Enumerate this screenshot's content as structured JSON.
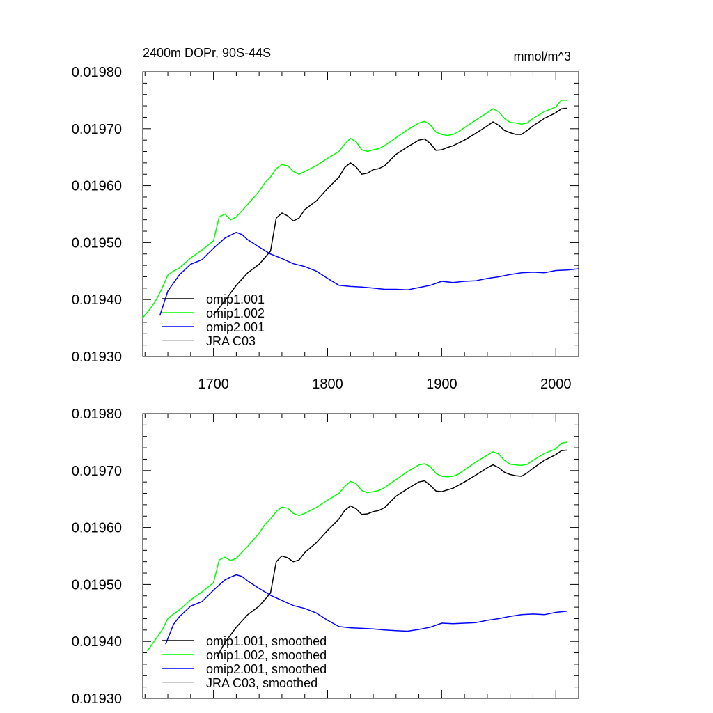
{
  "chart_data": [
    {
      "type": "line",
      "title": "2400m DOPr, 90S-44S",
      "units_label": "mmol/m^3",
      "xlim": [
        1638,
        2020
      ],
      "ylim": [
        0.0193,
        0.0198
      ],
      "xticks": [
        1700,
        1800,
        1900,
        2000
      ],
      "xtick_labels": [
        "1700",
        "1800",
        "1900",
        "2000"
      ],
      "yticks": [
        0.0193,
        0.0194,
        0.0195,
        0.0196,
        0.0197,
        0.0198
      ],
      "ytick_labels": [
        "0.01930",
        "0.01940",
        "0.01950",
        "0.01960",
        "0.01970",
        "0.01980"
      ],
      "legend_position": "bottom-left",
      "grid": false,
      "series": [
        {
          "name": "omip1.001",
          "color": "#000000",
          "x": [
            1700,
            1710,
            1720,
            1730,
            1740,
            1750,
            1755,
            1760,
            1765,
            1770,
            1775,
            1780,
            1790,
            1800,
            1810,
            1815,
            1820,
            1825,
            1830,
            1835,
            1840,
            1845,
            1850,
            1860,
            1870,
            1880,
            1885,
            1890,
            1895,
            1900,
            1905,
            1910,
            1920,
            1930,
            1940,
            1945,
            1950,
            1955,
            1960,
            1965,
            1970,
            1975,
            1980,
            1990,
            2000,
            2005,
            2010
          ],
          "y": [
            0.019373,
            0.019398,
            0.019425,
            0.019447,
            0.019462,
            0.019485,
            0.019543,
            0.019552,
            0.019547,
            0.019538,
            0.019543,
            0.019558,
            0.019573,
            0.019595,
            0.019615,
            0.019632,
            0.01964,
            0.019633,
            0.01962,
            0.019622,
            0.019628,
            0.01963,
            0.019635,
            0.019655,
            0.019668,
            0.01968,
            0.019682,
            0.019674,
            0.019662,
            0.019663,
            0.019667,
            0.01967,
            0.01968,
            0.019692,
            0.019705,
            0.019712,
            0.019706,
            0.019697,
            0.019693,
            0.01969,
            0.01969,
            0.019697,
            0.019705,
            0.019718,
            0.019728,
            0.019735,
            0.019736
          ]
        },
        {
          "name": "omip1.002",
          "color": "#00ff00",
          "x": [
            1638,
            1645,
            1650,
            1655,
            1660,
            1665,
            1670,
            1680,
            1690,
            1700,
            1705,
            1710,
            1715,
            1720,
            1730,
            1740,
            1745,
            1750,
            1755,
            1760,
            1765,
            1770,
            1775,
            1780,
            1790,
            1800,
            1810,
            1815,
            1820,
            1825,
            1830,
            1835,
            1840,
            1845,
            1850,
            1860,
            1870,
            1880,
            1885,
            1890,
            1895,
            1900,
            1905,
            1910,
            1915,
            1920,
            1930,
            1940,
            1945,
            1950,
            1955,
            1960,
            1965,
            1970,
            1975,
            1980,
            1990,
            2000,
            2005,
            2010
          ],
          "y": [
            0.019368,
            0.019385,
            0.0194,
            0.01942,
            0.019443,
            0.01945,
            0.019455,
            0.019473,
            0.019487,
            0.019503,
            0.019545,
            0.01955,
            0.01954,
            0.019545,
            0.019567,
            0.01959,
            0.019605,
            0.019615,
            0.01963,
            0.019637,
            0.019635,
            0.019625,
            0.01962,
            0.019625,
            0.019635,
            0.019648,
            0.01966,
            0.019673,
            0.019683,
            0.019677,
            0.019663,
            0.01966,
            0.019663,
            0.019665,
            0.01967,
            0.019684,
            0.019698,
            0.01971,
            0.019713,
            0.019707,
            0.019694,
            0.01969,
            0.019688,
            0.01969,
            0.019695,
            0.019702,
            0.019715,
            0.019728,
            0.019735,
            0.01973,
            0.019718,
            0.019711,
            0.01971,
            0.019708,
            0.01971,
            0.019718,
            0.01973,
            0.019738,
            0.01975,
            0.01975
          ]
        },
        {
          "name": "omip2.001",
          "color": "#0000ff",
          "x": [
            1653,
            1660,
            1670,
            1680,
            1690,
            1700,
            1710,
            1715,
            1720,
            1725,
            1730,
            1740,
            1750,
            1760,
            1770,
            1780,
            1790,
            1800,
            1810,
            1820,
            1830,
            1840,
            1850,
            1860,
            1870,
            1880,
            1890,
            1900,
            1910,
            1920,
            1930,
            1940,
            1950,
            1960,
            1970,
            1980,
            1990,
            2000,
            2010,
            2020
          ],
          "y": [
            0.019372,
            0.019415,
            0.019443,
            0.019462,
            0.01947,
            0.01949,
            0.019508,
            0.019513,
            0.019518,
            0.019514,
            0.019505,
            0.019492,
            0.01948,
            0.019472,
            0.019463,
            0.019458,
            0.01945,
            0.019437,
            0.019425,
            0.019423,
            0.019422,
            0.01942,
            0.019418,
            0.019418,
            0.019417,
            0.019421,
            0.019425,
            0.019432,
            0.01943,
            0.019432,
            0.019433,
            0.019437,
            0.01944,
            0.019444,
            0.019447,
            0.019448,
            0.019447,
            0.019451,
            0.019452,
            0.019454
          ]
        },
        {
          "name": "JRA C03",
          "color": "#bbbbbb",
          "x": [],
          "y": []
        }
      ]
    },
    {
      "type": "line",
      "xlim": [
        1638,
        2020
      ],
      "ylim": [
        0.0193,
        0.0198
      ],
      "xticks": [
        1700,
        1800,
        1900,
        2000
      ],
      "yticks": [
        0.0193,
        0.0194,
        0.0195,
        0.0196,
        0.0197,
        0.0198
      ],
      "ytick_labels": [
        "0.01930",
        "0.01940",
        "0.01950",
        "0.01960",
        "0.01970",
        "0.01980"
      ],
      "legend_position": "bottom-left",
      "grid": false,
      "series": [
        {
          "name": "omip1.001, smoothed",
          "color": "#000000",
          "x": [
            1703,
            1710,
            1720,
            1730,
            1740,
            1750,
            1755,
            1760,
            1765,
            1770,
            1775,
            1780,
            1790,
            1800,
            1810,
            1815,
            1820,
            1825,
            1830,
            1835,
            1840,
            1845,
            1850,
            1860,
            1870,
            1880,
            1885,
            1890,
            1895,
            1900,
            1905,
            1910,
            1920,
            1930,
            1940,
            1945,
            1950,
            1955,
            1960,
            1965,
            1970,
            1975,
            1980,
            1990,
            2000,
            2005,
            2010
          ],
          "y": [
            0.019373,
            0.019398,
            0.019425,
            0.019447,
            0.019462,
            0.019485,
            0.01954,
            0.01955,
            0.019547,
            0.01954,
            0.019543,
            0.019556,
            0.019573,
            0.019595,
            0.019615,
            0.01963,
            0.019638,
            0.019633,
            0.019623,
            0.019624,
            0.019628,
            0.01963,
            0.019635,
            0.019655,
            0.019668,
            0.01968,
            0.019682,
            0.019674,
            0.019664,
            0.019663,
            0.019666,
            0.019669,
            0.01968,
            0.019692,
            0.019705,
            0.01971,
            0.019705,
            0.019697,
            0.019693,
            0.019691,
            0.01969,
            0.019696,
            0.019704,
            0.019718,
            0.019728,
            0.019735,
            0.019736
          ]
        },
        {
          "name": "omip1.002, smoothed",
          "color": "#00ff00",
          "x": [
            1642,
            1648,
            1655,
            1660,
            1665,
            1670,
            1680,
            1690,
            1700,
            1705,
            1710,
            1715,
            1720,
            1730,
            1740,
            1745,
            1750,
            1755,
            1760,
            1765,
            1770,
            1775,
            1780,
            1790,
            1800,
            1810,
            1815,
            1820,
            1825,
            1830,
            1835,
            1840,
            1845,
            1850,
            1860,
            1870,
            1880,
            1885,
            1890,
            1895,
            1900,
            1905,
            1910,
            1915,
            1920,
            1930,
            1940,
            1945,
            1950,
            1955,
            1960,
            1965,
            1970,
            1975,
            1980,
            1990,
            2000,
            2005,
            2010
          ],
          "y": [
            0.019383,
            0.0194,
            0.01942,
            0.01944,
            0.019448,
            0.019455,
            0.019473,
            0.019487,
            0.019503,
            0.019543,
            0.019548,
            0.019542,
            0.019546,
            0.019567,
            0.01959,
            0.019605,
            0.019615,
            0.019628,
            0.019636,
            0.019634,
            0.019625,
            0.019621,
            0.019625,
            0.019635,
            0.019648,
            0.01966,
            0.019672,
            0.019681,
            0.019677,
            0.019665,
            0.019661,
            0.019663,
            0.019665,
            0.01967,
            0.019684,
            0.019698,
            0.01971,
            0.019712,
            0.019707,
            0.019695,
            0.01969,
            0.019689,
            0.01969,
            0.019694,
            0.019701,
            0.019715,
            0.019727,
            0.019733,
            0.019729,
            0.019718,
            0.019711,
            0.01971,
            0.019709,
            0.019711,
            0.019718,
            0.01973,
            0.019738,
            0.019748,
            0.01975
          ]
        },
        {
          "name": "omip2.001, smoothed",
          "color": "#0000ff",
          "x": [
            1658,
            1665,
            1670,
            1680,
            1690,
            1700,
            1710,
            1715,
            1720,
            1725,
            1730,
            1740,
            1750,
            1760,
            1770,
            1780,
            1790,
            1800,
            1810,
            1820,
            1830,
            1840,
            1850,
            1860,
            1870,
            1880,
            1890,
            1900,
            1910,
            1920,
            1930,
            1940,
            1950,
            1960,
            1970,
            1980,
            1990,
            2000,
            2010
          ],
          "y": [
            0.019395,
            0.01943,
            0.019443,
            0.019462,
            0.01947,
            0.01949,
            0.019508,
            0.019513,
            0.019517,
            0.019514,
            0.019506,
            0.019493,
            0.019481,
            0.019472,
            0.019463,
            0.019458,
            0.01945,
            0.019437,
            0.019426,
            0.019424,
            0.019423,
            0.019422,
            0.01942,
            0.019419,
            0.019418,
            0.019421,
            0.019425,
            0.019432,
            0.019431,
            0.019432,
            0.019433,
            0.019437,
            0.01944,
            0.019444,
            0.019447,
            0.019448,
            0.019447,
            0.019451,
            0.019453
          ]
        },
        {
          "name": "JRA C03, smoothed",
          "color": "#bbbbbb",
          "x": [],
          "y": []
        }
      ]
    }
  ]
}
